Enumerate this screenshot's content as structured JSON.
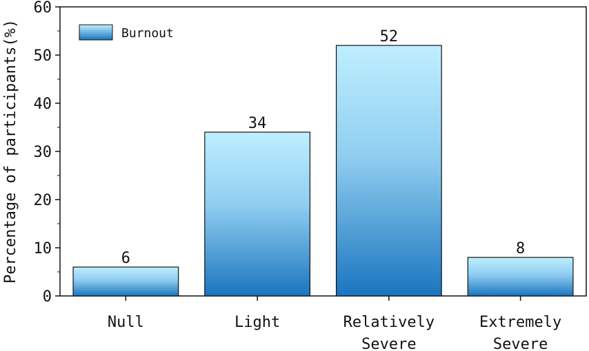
{
  "chart_data": {
    "type": "bar",
    "categories": [
      "Null",
      "Light",
      "Relatively\nSevere",
      "Extremely\nSevere"
    ],
    "series": [
      {
        "name": "Burnout",
        "values": [
          6,
          34,
          52,
          8
        ]
      }
    ],
    "data_labels": [
      "6",
      "34",
      "52",
      "8"
    ],
    "ylabel": "Percentage of participants(%)",
    "xlabel": "",
    "ylim": [
      0,
      60
    ],
    "yticks": [
      0,
      10,
      20,
      30,
      40,
      50,
      60
    ],
    "grid": false,
    "legend_position": "top-left",
    "colors": {
      "bar_top": "#bfefff",
      "bar_bottom": "#1a75bf",
      "axis": "#111111"
    }
  }
}
